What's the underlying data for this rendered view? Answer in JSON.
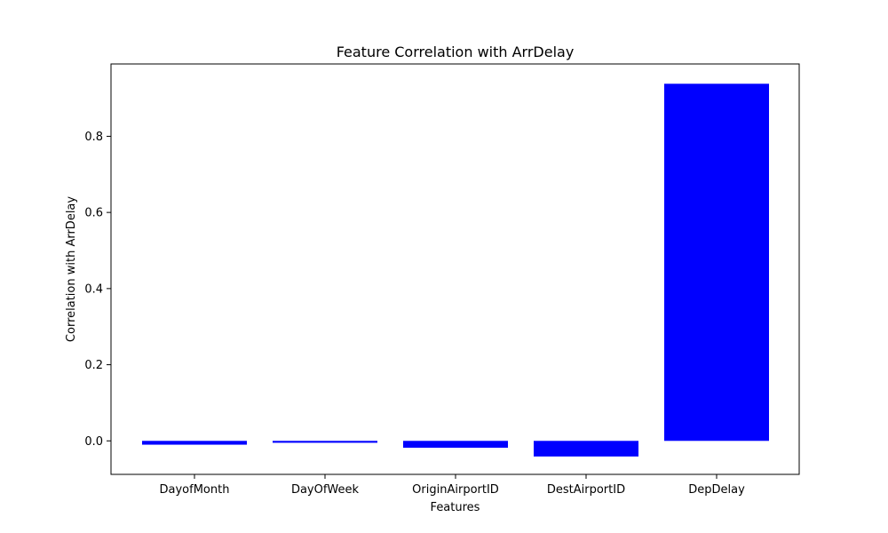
{
  "chart_data": {
    "type": "bar",
    "title": "Feature Correlation with ArrDelay",
    "xlabel": "Features",
    "ylabel": "Correlation with ArrDelay",
    "categories": [
      "DayofMonth",
      "DayOfWeek",
      "OriginAirportID",
      "DestAirportID",
      "DepDelay"
    ],
    "values": [
      -0.01,
      -0.005,
      -0.018,
      -0.041,
      0.938
    ],
    "ylim": [
      -0.088,
      0.99
    ],
    "yticks": [
      0.0,
      0.2,
      0.4,
      0.6,
      0.8
    ],
    "ytick_labels": [
      "0.0",
      "0.2",
      "0.4",
      "0.6",
      "0.8"
    ],
    "bar_color": "#0000ff",
    "grid": false
  }
}
